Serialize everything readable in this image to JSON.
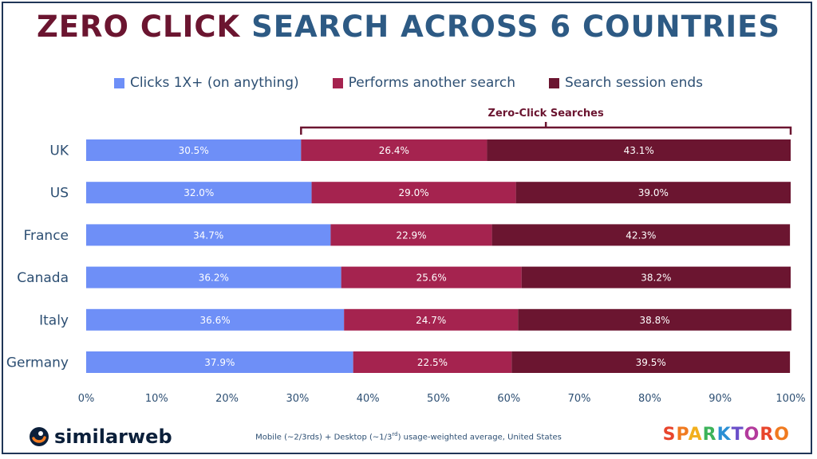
{
  "title": {
    "part1": "ZERO CLICK",
    "part2": "SEARCH ACROSS 6 COUNTRIES"
  },
  "legend": [
    {
      "label": "Clicks 1X+ (on anything)",
      "color": "#6e8ff7"
    },
    {
      "label": "Performs another search",
      "color": "#a5234f"
    },
    {
      "label": "Search session ends",
      "color": "#6b1530"
    }
  ],
  "chart_data": {
    "type": "bar",
    "orientation": "horizontal",
    "stacked": true,
    "categories": [
      "UK",
      "US",
      "France",
      "Canada",
      "Italy",
      "Germany"
    ],
    "series": [
      {
        "name": "Clicks 1X+ (on anything)",
        "values": [
          30.5,
          32.0,
          34.7,
          36.2,
          36.6,
          37.9
        ],
        "labels": [
          "30.5%",
          "32.0%",
          "34.7%",
          "36.2%",
          "36.6%",
          "37.9%"
        ],
        "color": "#6e8ff7"
      },
      {
        "name": "Performs another search",
        "values": [
          26.4,
          29.0,
          22.9,
          25.6,
          24.7,
          22.5
        ],
        "labels": [
          "26.4%",
          "29.0%",
          "22.9%",
          "25.6%",
          "24.7%",
          "22.5%"
        ],
        "color": "#a5234f"
      },
      {
        "name": "Search session ends",
        "values": [
          43.1,
          39.0,
          42.3,
          38.2,
          38.8,
          39.5
        ],
        "labels": [
          "43.1%",
          "39.0%",
          "42.3%",
          "38.2%",
          "38.8%",
          "39.5%"
        ],
        "color": "#6b1530"
      }
    ],
    "xlim": [
      0,
      100
    ],
    "xticks": [
      "0%",
      "10%",
      "20%",
      "30%",
      "40%",
      "50%",
      "60%",
      "70%",
      "80%",
      "90%",
      "100%"
    ],
    "annotation": {
      "text": "Zero-Click Searches",
      "from": 30.5,
      "to": 100
    },
    "grid": false,
    "legend_position": "top"
  },
  "footnote": {
    "a": "Mobile (~2/3rds) + Desktop (~1/3",
    "sup": "rd",
    "b": ") usage-weighted average, United States"
  },
  "logos": {
    "left": "similarweb",
    "right": {
      "text": "SPARKTORO",
      "colors": [
        "#e8452c",
        "#f07a1f",
        "#f2b01e",
        "#3cb35a",
        "#2a8fd4",
        "#6a4fc9",
        "#b33a9c",
        "#e8452c",
        "#f07a1f"
      ]
    }
  }
}
